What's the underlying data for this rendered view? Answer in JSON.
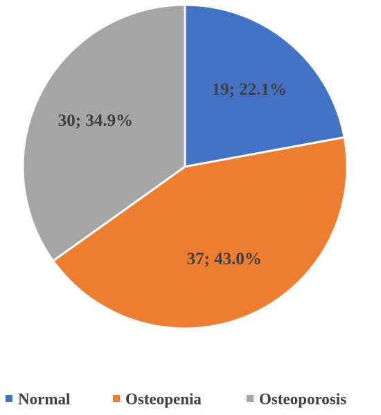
{
  "chart_data": {
    "type": "pie",
    "title": "",
    "categories": [
      "Normal",
      "Osteopenia",
      "Osteoporosis"
    ],
    "values": [
      19,
      37,
      30
    ],
    "percent_labels": [
      "22.1%",
      "43.0%",
      "34.9%"
    ],
    "data_labels": [
      "19; 22.1%",
      "37; 43.0%",
      "30; 34.9%"
    ],
    "colors": [
      "#4472C4",
      "#ED7D31",
      "#A5A5A5"
    ],
    "legend_position": "bottom",
    "start_angle": "top, clockwise"
  }
}
